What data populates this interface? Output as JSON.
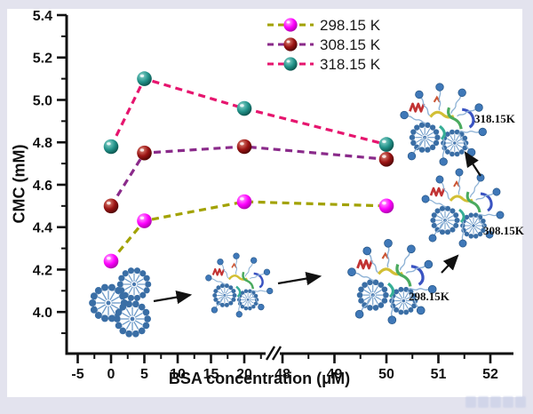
{
  "chart_data": {
    "type": "line",
    "title": "",
    "xlabel": "BSA concentration (μM)",
    "ylabel": "CMC (mM)",
    "x": [
      0,
      5,
      20,
      50
    ],
    "series": [
      {
        "name": "298.15 K",
        "values": [
          4.24,
          4.43,
          4.52,
          4.5
        ],
        "line_color": "#a2a200",
        "ball": {
          "hi": "#ffb0ff",
          "base": "#ff00ff",
          "lo": "#a800a8"
        }
      },
      {
        "name": "308.15 K",
        "values": [
          4.5,
          4.75,
          4.78,
          4.72
        ],
        "line_color": "#8a2a8a",
        "ball": {
          "hi": "#e08a7a",
          "base": "#9c1414",
          "lo": "#4a0505"
        }
      },
      {
        "name": "318.15 K",
        "values": [
          4.78,
          5.1,
          4.96,
          4.79
        ],
        "line_color": "#e6156e",
        "ball": {
          "hi": "#90d6ce",
          "base": "#23948b",
          "lo": "#0a4f49"
        }
      }
    ],
    "x_axis": {
      "left_ticks": [
        -5,
        0,
        5,
        10,
        15,
        20
      ],
      "right_ticks": [
        48,
        49,
        50,
        51,
        52
      ],
      "break": true
    },
    "y_axis": {
      "ticks": [
        4.0,
        4.2,
        4.4,
        4.6,
        4.8,
        5.0,
        5.2,
        5.4
      ],
      "range": [
        3.8,
        5.4
      ]
    },
    "legend_position": "top-center",
    "annotations": [
      {
        "label": "298.15K"
      },
      {
        "label": "308.15K"
      },
      {
        "label": "318.15K"
      }
    ]
  },
  "colors": {
    "background": "#e3e3ee",
    "plot_background": "#ffffff",
    "axis": "#111111",
    "micelle_blue": "#3a6ea5",
    "surfactant_head": "#3f78b8"
  }
}
